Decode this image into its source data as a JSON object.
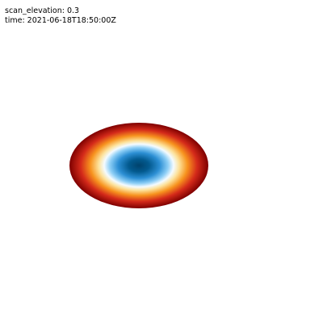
{
  "header": {
    "elevation_line": "scan_elevation: 0.3",
    "time_line": "time: 2021-06-18T18:50:00Z"
  },
  "chart_data": {
    "type": "heatmap",
    "title": "",
    "xlabel": "",
    "ylabel": "",
    "grid": false,
    "legend": "none",
    "description_values": {
      "scan_elevation": 0.3,
      "time": "2021-06-18T18:50:00Z"
    },
    "field": "radial",
    "colormap": {
      "name": "diverging-blue-red",
      "stops": [
        {
          "pos": 0.0,
          "color": "#00426c"
        },
        {
          "pos": 0.15,
          "color": "#035a8f"
        },
        {
          "pos": 0.3,
          "color": "#2c8fd4"
        },
        {
          "pos": 0.42,
          "color": "#8ecff6"
        },
        {
          "pos": 0.5,
          "color": "#f4fbff"
        },
        {
          "pos": 0.58,
          "color": "#fde29b"
        },
        {
          "pos": 0.7,
          "color": "#f7931e"
        },
        {
          "pos": 0.84,
          "color": "#d42a1a"
        },
        {
          "pos": 1.0,
          "color": "#7e0000"
        }
      ]
    }
  }
}
